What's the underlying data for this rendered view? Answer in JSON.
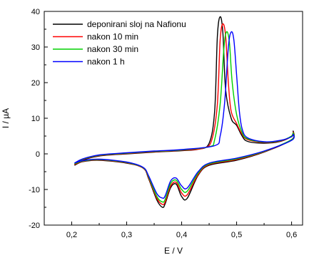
{
  "chart_data": {
    "type": "line",
    "title": "",
    "xlabel": "E / V",
    "ylabel": "I / µA",
    "xlim": [
      0.15,
      0.62
    ],
    "ylim": [
      -20,
      40
    ],
    "x_ticks": [
      0.2,
      0.3,
      0.4,
      0.5,
      0.6
    ],
    "x_tick_labels": [
      "0,2",
      "0,3",
      "0,4",
      "0,5",
      "0,6"
    ],
    "y_ticks": [
      -20,
      -10,
      0,
      10,
      20,
      30,
      40
    ],
    "y_tick_labels": [
      "-20",
      "-10",
      "0",
      "10",
      "20",
      "30",
      "40"
    ],
    "grid": false,
    "legend_position": "top-left",
    "series": [
      {
        "name": "deponirani sloj na Nafionu",
        "color": "#000000",
        "peak": [
          0.47,
          38.5
        ],
        "anodic": [
          [
            0.205,
            -3.2
          ],
          [
            0.22,
            -1.8
          ],
          [
            0.25,
            -0.6
          ],
          [
            0.3,
            0
          ],
          [
            0.35,
            0.5
          ],
          [
            0.4,
            0.9
          ],
          [
            0.43,
            1.3
          ],
          [
            0.45,
            3
          ],
          [
            0.46,
            12
          ],
          [
            0.465,
            33
          ],
          [
            0.47,
            38.5
          ],
          [
            0.475,
            34
          ],
          [
            0.48,
            18
          ],
          [
            0.49,
            10
          ],
          [
            0.5,
            8
          ],
          [
            0.51,
            5
          ],
          [
            0.52,
            3.5
          ],
          [
            0.55,
            3
          ],
          [
            0.58,
            3.5
          ],
          [
            0.6,
            5
          ],
          [
            0.603,
            6.5
          ]
        ],
        "cathodic": [
          [
            0.603,
            6.5
          ],
          [
            0.6,
            4
          ],
          [
            0.55,
            0.5
          ],
          [
            0.5,
            -1.8
          ],
          [
            0.45,
            -3.2
          ],
          [
            0.43,
            -6
          ],
          [
            0.41,
            -12.5
          ],
          [
            0.4,
            -12
          ],
          [
            0.39,
            -8.5
          ],
          [
            0.38,
            -9.5
          ],
          [
            0.37,
            -14
          ],
          [
            0.365,
            -15
          ],
          [
            0.355,
            -13
          ],
          [
            0.34,
            -7
          ],
          [
            0.33,
            -4
          ],
          [
            0.3,
            -2.6
          ],
          [
            0.25,
            -1.8
          ],
          [
            0.22,
            -2.2
          ],
          [
            0.205,
            -3.2
          ]
        ]
      },
      {
        "name": "nakon 10 min",
        "color": "#ff0000",
        "peak": [
          0.475,
          36.5
        ],
        "anodic": [
          [
            0.205,
            -3.0
          ],
          [
            0.22,
            -1.6
          ],
          [
            0.25,
            -0.5
          ],
          [
            0.3,
            0.1
          ],
          [
            0.35,
            0.6
          ],
          [
            0.4,
            1.0
          ],
          [
            0.44,
            1.6
          ],
          [
            0.455,
            4
          ],
          [
            0.465,
            14
          ],
          [
            0.47,
            32
          ],
          [
            0.475,
            36.5
          ],
          [
            0.48,
            33
          ],
          [
            0.485,
            20
          ],
          [
            0.49,
            12
          ],
          [
            0.5,
            8.5
          ],
          [
            0.51,
            5.5
          ],
          [
            0.52,
            4
          ],
          [
            0.55,
            3.2
          ],
          [
            0.58,
            3.6
          ],
          [
            0.6,
            5
          ],
          [
            0.603,
            6.2
          ]
        ],
        "cathodic": [
          [
            0.603,
            6.2
          ],
          [
            0.6,
            4
          ],
          [
            0.55,
            0.6
          ],
          [
            0.5,
            -1.6
          ],
          [
            0.45,
            -3
          ],
          [
            0.43,
            -5.8
          ],
          [
            0.41,
            -11.5
          ],
          [
            0.4,
            -11
          ],
          [
            0.39,
            -8
          ],
          [
            0.38,
            -9
          ],
          [
            0.37,
            -13.5
          ],
          [
            0.365,
            -14.2
          ],
          [
            0.355,
            -12.5
          ],
          [
            0.34,
            -6.8
          ],
          [
            0.33,
            -4
          ],
          [
            0.3,
            -2.5
          ],
          [
            0.25,
            -1.7
          ],
          [
            0.22,
            -2.1
          ],
          [
            0.205,
            -3.0
          ]
        ]
      },
      {
        "name": "nakon 30 min",
        "color": "#00d000",
        "peak": [
          0.482,
          34.3
        ],
        "anodic": [
          [
            0.205,
            -2.8
          ],
          [
            0.22,
            -1.5
          ],
          [
            0.25,
            -0.4
          ],
          [
            0.3,
            0.2
          ],
          [
            0.35,
            0.7
          ],
          [
            0.4,
            1.1
          ],
          [
            0.45,
            2
          ],
          [
            0.46,
            4
          ],
          [
            0.47,
            14
          ],
          [
            0.477,
            30
          ],
          [
            0.482,
            34.3
          ],
          [
            0.487,
            31
          ],
          [
            0.492,
            20
          ],
          [
            0.5,
            11
          ],
          [
            0.51,
            6
          ],
          [
            0.52,
            4.2
          ],
          [
            0.55,
            3.3
          ],
          [
            0.58,
            3.7
          ],
          [
            0.6,
            5
          ],
          [
            0.603,
            6
          ]
        ],
        "cathodic": [
          [
            0.603,
            6
          ],
          [
            0.6,
            4
          ],
          [
            0.55,
            0.7
          ],
          [
            0.5,
            -1.4
          ],
          [
            0.45,
            -2.8
          ],
          [
            0.43,
            -5.4
          ],
          [
            0.41,
            -10.5
          ],
          [
            0.4,
            -10
          ],
          [
            0.39,
            -7.4
          ],
          [
            0.38,
            -8.3
          ],
          [
            0.37,
            -12.8
          ],
          [
            0.365,
            -13.5
          ],
          [
            0.355,
            -12
          ],
          [
            0.34,
            -6.5
          ],
          [
            0.33,
            -3.9
          ],
          [
            0.3,
            -2.4
          ],
          [
            0.25,
            -1.6
          ],
          [
            0.22,
            -2
          ],
          [
            0.205,
            -2.8
          ]
        ]
      },
      {
        "name": "nakon 1 h",
        "color": "#0000ff",
        "peak": [
          0.49,
          34.2
        ],
        "anodic": [
          [
            0.205,
            -2.6
          ],
          [
            0.22,
            -1.4
          ],
          [
            0.25,
            -0.3
          ],
          [
            0.3,
            0.3
          ],
          [
            0.35,
            0.8
          ],
          [
            0.4,
            1.2
          ],
          [
            0.46,
            2.3
          ],
          [
            0.47,
            5
          ],
          [
            0.478,
            14
          ],
          [
            0.485,
            30
          ],
          [
            0.49,
            34.2
          ],
          [
            0.495,
            32
          ],
          [
            0.5,
            22
          ],
          [
            0.505,
            12
          ],
          [
            0.51,
            7
          ],
          [
            0.52,
            4.5
          ],
          [
            0.55,
            3.4
          ],
          [
            0.58,
            3.8
          ],
          [
            0.6,
            4.8
          ],
          [
            0.603,
            5.6
          ]
        ],
        "cathodic": [
          [
            0.603,
            5.6
          ],
          [
            0.6,
            3.8
          ],
          [
            0.55,
            0.8
          ],
          [
            0.5,
            -1.2
          ],
          [
            0.45,
            -2.6
          ],
          [
            0.43,
            -5
          ],
          [
            0.41,
            -9.6
          ],
          [
            0.4,
            -9
          ],
          [
            0.39,
            -6.8
          ],
          [
            0.38,
            -7.6
          ],
          [
            0.37,
            -11.8
          ],
          [
            0.365,
            -12.4
          ],
          [
            0.355,
            -11.2
          ],
          [
            0.34,
            -6.2
          ],
          [
            0.33,
            -3.8
          ],
          [
            0.3,
            -2.3
          ],
          [
            0.25,
            -1.5
          ],
          [
            0.22,
            -1.9
          ],
          [
            0.205,
            -2.6
          ]
        ]
      }
    ]
  }
}
